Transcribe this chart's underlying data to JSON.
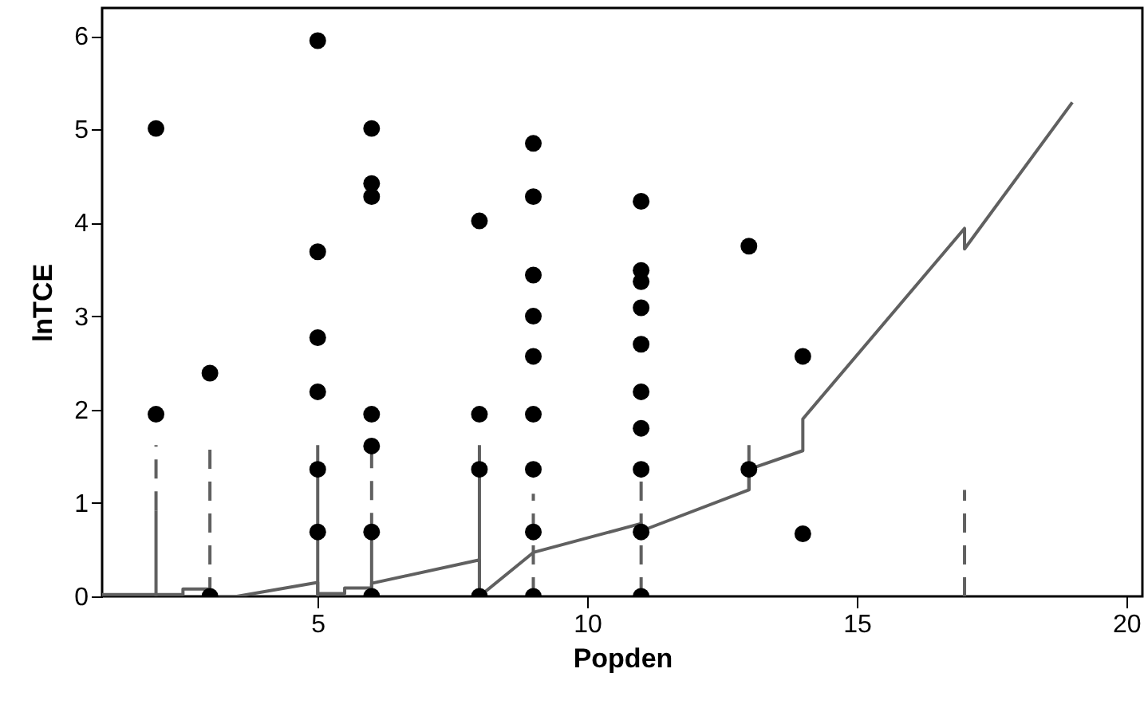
{
  "chart_data": {
    "type": "scatter",
    "xlabel": "Popden",
    "ylabel": "lnTCE",
    "xlim": [
      1,
      20.3
    ],
    "ylim": [
      0,
      6.3
    ],
    "xticks": [
      5,
      10,
      15,
      20
    ],
    "yticks": [
      0,
      1,
      2,
      3,
      4,
      5,
      6
    ],
    "grid": false,
    "series": [
      {
        "color": "#000000",
        "marker": "circle",
        "x": [
          2,
          2,
          3,
          3,
          5,
          5,
          5,
          5,
          5,
          5,
          6,
          6,
          6,
          6,
          6,
          6,
          6,
          8,
          8,
          8,
          8,
          9,
          9,
          9,
          9,
          9,
          9,
          9,
          9,
          9,
          11,
          11,
          11,
          11,
          11,
          11,
          11,
          11,
          11,
          11,
          13,
          13,
          14,
          14
        ],
        "values": [
          5.01,
          1.95,
          2.39,
          0,
          5.95,
          3.69,
          2.77,
          2.19,
          1.36,
          0.69,
          5.01,
          4.42,
          4.28,
          1.95,
          1.61,
          0.69,
          0,
          4.02,
          1.95,
          1.36,
          0,
          4.85,
          4.28,
          3.44,
          3.0,
          2.57,
          1.95,
          1.36,
          0.69,
          0,
          4.23,
          3.49,
          3.37,
          3.09,
          2.7,
          2.19,
          1.8,
          1.36,
          0.69,
          0,
          3.75,
          1.36,
          2.57,
          0.67
        ]
      },
      {
        "type": "line",
        "color": "#606060",
        "line_style": "solid",
        "x": [
          1,
          2.5,
          2.5,
          3,
          3,
          3.5,
          5,
          5,
          5.5,
          5.5,
          6,
          6,
          8,
          8,
          9,
          11,
          11,
          13,
          13,
          14,
          14,
          17,
          17,
          19
        ],
        "values": [
          0.02,
          0.02,
          0.08,
          0.08,
          0,
          0,
          0.15,
          0.03,
          0.03,
          0.09,
          0.09,
          0.14,
          0.39,
          0,
          0.47,
          0.78,
          0.7,
          1.14,
          1.36,
          1.56,
          1.9,
          3.94,
          3.72,
          5.29
        ]
      },
      {
        "type": "line",
        "color": "#606060",
        "line_style": "solid",
        "x": [
          2,
          2,
          null,
          5,
          5,
          null,
          6,
          6,
          null,
          8,
          8,
          null,
          13,
          13
        ],
        "values": [
          0,
          0.92,
          null,
          0,
          1.62,
          null,
          0,
          0.69,
          null,
          0,
          1.62,
          null,
          1.14,
          1.62
        ]
      },
      {
        "type": "line",
        "color": "#606060",
        "line_style": "dashed",
        "x": [
          2,
          2,
          null,
          3,
          3,
          null,
          6,
          6,
          null,
          9,
          9,
          null,
          11,
          11,
          null,
          17,
          17
        ],
        "values": [
          0.92,
          1.62,
          null,
          0,
          1.62,
          null,
          0.69,
          1.62,
          null,
          0,
          1.1,
          null,
          0,
          1.3,
          null,
          0,
          1.14
        ]
      }
    ]
  }
}
